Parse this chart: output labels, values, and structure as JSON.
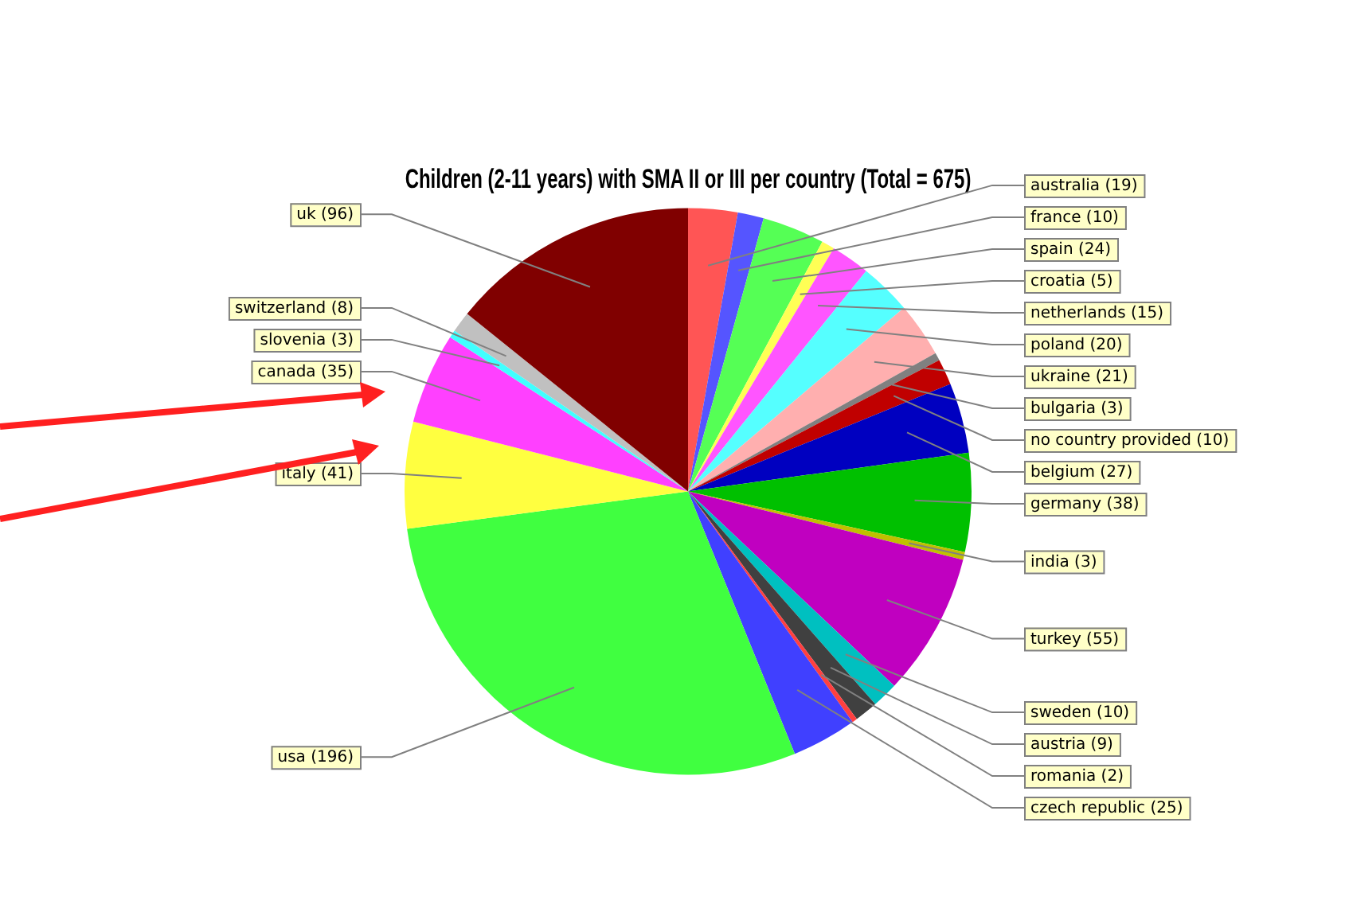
{
  "chart_data": {
    "type": "pie",
    "title": "Children (2-11 years) with SMA II or III per country (Total = 675)",
    "categories": [
      "australia (19)",
      "france (10)",
      "spain (24)",
      "croatia (5)",
      "netherlands (15)",
      "poland (20)",
      "ukraine (21)",
      "bulgaria (3)",
      "no country provided (10)",
      "belgium (27)",
      "germany (38)",
      "india (3)",
      "turkey (55)",
      "sweden (10)",
      "austria (9)",
      "romania (2)",
      "czech republic (25)",
      "usa (196)",
      "italy (41)",
      "canada (35)",
      "slovenia (3)",
      "switzerland (8)",
      "uk (96)"
    ],
    "values": [
      19,
      10,
      24,
      5,
      15,
      20,
      21,
      3,
      10,
      27,
      38,
      3,
      55,
      10,
      9,
      2,
      25,
      196,
      41,
      35,
      3,
      8,
      96
    ],
    "colors": [
      "#ff5555",
      "#5555ff",
      "#55ff55",
      "#ffff55",
      "#ff55ff",
      "#55ffff",
      "#ffafaf",
      "#808080",
      "#c00000",
      "#0000c0",
      "#00c000",
      "#c0c000",
      "#c000c0",
      "#00c0c0",
      "#404040",
      "#ff4040",
      "#4040ff",
      "#40ff40",
      "#ffff40",
      "#ff40ff",
      "#40ffff",
      "#c0c0c0",
      "#800000"
    ],
    "legend": false
  }
}
